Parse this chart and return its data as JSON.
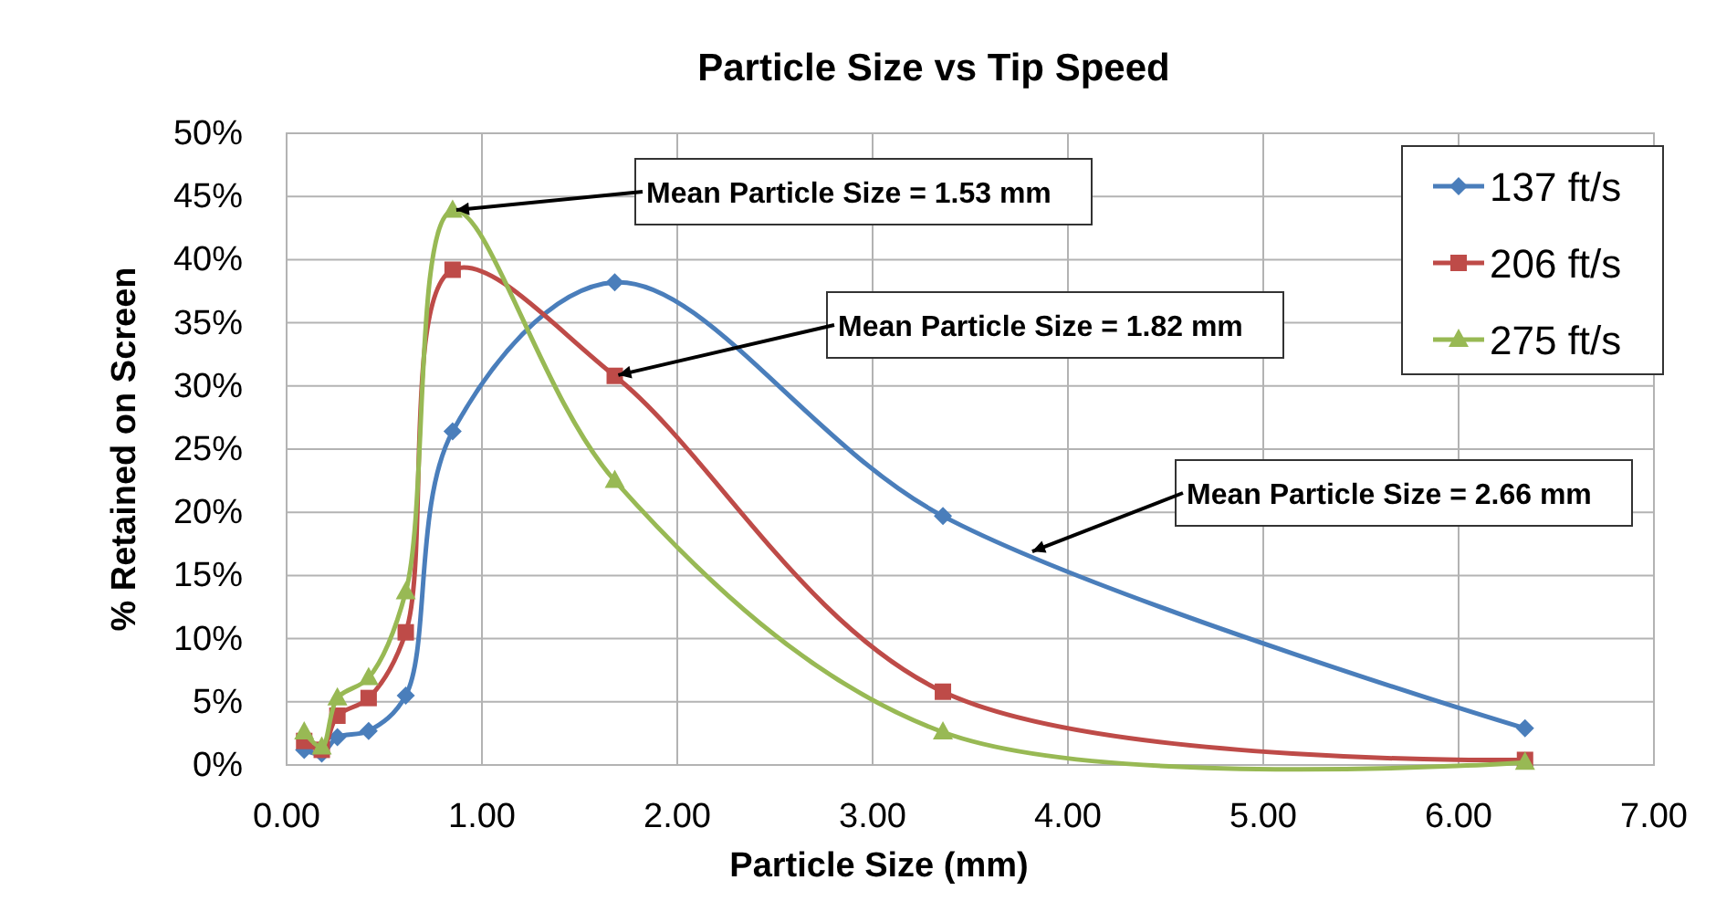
{
  "chart_data": {
    "type": "line",
    "title": "Particle Size vs Tip Speed",
    "xlabel": "Particle Size (mm)",
    "ylabel": "% Retained on Screen",
    "xlim": [
      0,
      7
    ],
    "xticks": [
      {
        "value": 0,
        "label": "0.00"
      },
      {
        "value": 1,
        "label": "1.00"
      },
      {
        "value": 2,
        "label": "2.00"
      },
      {
        "value": 3,
        "label": "3.00"
      },
      {
        "value": 4,
        "label": "4.00"
      },
      {
        "value": 5,
        "label": "5.00"
      },
      {
        "value": 6,
        "label": "6.00"
      },
      {
        "value": 7,
        "label": "7.00"
      }
    ],
    "ylim": [
      0,
      50
    ],
    "yticks": [
      {
        "value": 0,
        "label": "0%"
      },
      {
        "value": 5,
        "label": "5%"
      },
      {
        "value": 10,
        "label": "10%"
      },
      {
        "value": 15,
        "label": "15%"
      },
      {
        "value": 20,
        "label": "20%"
      },
      {
        "value": 25,
        "label": "25%"
      },
      {
        "value": 30,
        "label": "30%"
      },
      {
        "value": 35,
        "label": "35%"
      },
      {
        "value": 40,
        "label": "40%"
      },
      {
        "value": 45,
        "label": "45%"
      },
      {
        "value": 50,
        "label": "50%"
      }
    ],
    "grid": true,
    "legend": "top right",
    "line_style": "solid",
    "x": [
      0.09,
      0.18,
      0.26,
      0.42,
      0.61,
      0.85,
      1.68,
      3.36,
      6.34
    ],
    "series": [
      {
        "name": "137 ft/s",
        "color": "#4a7ebb",
        "marker": "diamond",
        "values": [
          1.2,
          0.9,
          2.2,
          2.7,
          5.5,
          26.4,
          38.2,
          19.7,
          2.9
        ]
      },
      {
        "name": "206 ft/s",
        "color": "#be4b48",
        "marker": "square",
        "values": [
          1.9,
          1.2,
          3.9,
          5.3,
          10.5,
          39.2,
          30.8,
          5.8,
          0.4
        ]
      },
      {
        "name": "275 ft/s",
        "color": "#98b954",
        "marker": "triangle",
        "values": [
          2.6,
          1.4,
          5.3,
          6.9,
          13.7,
          43.9,
          22.5,
          2.6,
          0.2
        ]
      }
    ],
    "annotations": [
      {
        "text": "Mean Particle Size = 1.53 mm",
        "x": 0.85,
        "y": 43.9
      },
      {
        "text": "Mean Particle Size = 1.82 mm",
        "x": 1.68,
        "y": 30.8
      },
      {
        "text": "Mean Particle Size = 2.66 mm",
        "x": 3.8,
        "y": 16.8
      }
    ]
  }
}
